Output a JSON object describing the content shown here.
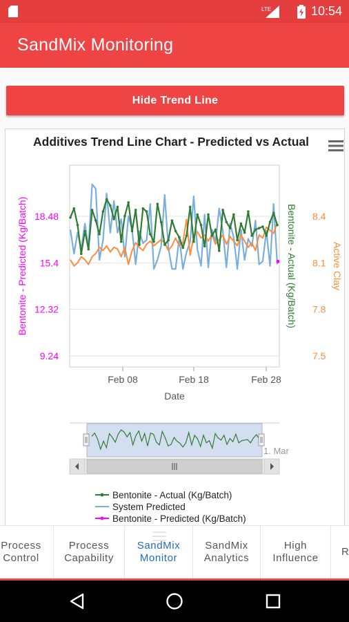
{
  "status_bar": {
    "time": "10:54",
    "network": "LTE"
  },
  "app_bar": {
    "title": "SandMix Monitoring"
  },
  "hide_button": {
    "label": "Hide Trend Line"
  },
  "chart_data": {
    "type": "line",
    "title": "Additives Trend Line Chart - Predicted vs Actual",
    "xlabel": "Date",
    "x_ticks": [
      "Feb 08",
      "Feb 18",
      "Feb 28"
    ],
    "left_axis": {
      "label": "Bentonite - Predicted (Kg/Batch)",
      "ticks": [
        "9.24",
        "12.32",
        "15.4",
        "18.48"
      ],
      "range": [
        9.24,
        18.48
      ],
      "color": "#ff00ff"
    },
    "right_axis_1": {
      "label": "Bentonite - Actual (Kg/Batch)",
      "color": "#2e7d32"
    },
    "right_axis_2": {
      "label": "Active Clay",
      "ticks": [
        "7.5",
        "7.8",
        "8.1",
        "8.4"
      ],
      "range": [
        7.5,
        8.4
      ],
      "color": "#ff8c3a"
    },
    "navigator_label": "1. Mar",
    "series": [
      {
        "name": "Bentonite - Actual (Kg/Batch)",
        "color": "#2e7d32",
        "values": [
          18.4,
          19.0,
          17.9,
          16.0,
          17.5,
          16.3,
          18.9,
          18.2,
          17.3,
          18.8,
          19.6,
          19.2,
          18.3,
          19.1,
          16.8,
          18.5,
          19.4,
          17.5,
          18.9,
          16.6,
          19.0,
          18.8,
          17.3,
          16.8,
          19.3,
          18.1,
          16.6,
          16.9,
          18.2,
          17.5,
          17.1,
          16.4,
          17.2,
          19.1,
          16.8,
          18.6,
          17.9,
          16.5,
          18.6,
          17.2,
          17.6,
          16.2,
          18.9,
          18.1,
          17.7,
          18.6,
          16.9,
          18.0,
          17.4,
          18.8,
          17.2,
          17.6,
          17.7,
          17.8,
          17.2,
          18.1,
          18.7,
          17.9
        ]
      },
      {
        "name": "System Predicted",
        "color": "#7aaedc",
        "values": [
          17.6,
          16.0,
          17.4,
          16.3,
          18.0,
          16.4,
          20.6,
          20.3,
          15.6,
          16.9,
          20.0,
          17.4,
          19.5,
          17.4,
          18.3,
          15.8,
          18.5,
          17.6,
          15.3,
          17.5,
          16.7,
          16.9,
          19.3,
          15.0,
          15.6,
          16.5,
          19.9,
          16.4,
          15.0,
          15.0,
          17.1,
          15.0,
          16.1,
          16.8,
          19.8,
          16.3,
          15.2,
          18.6,
          15.1,
          17.6,
          16.8,
          19.0,
          17.5,
          15.1,
          18.0,
          17.1,
          15.0,
          17.6,
          15.6,
          17.0,
          16.5,
          18.2,
          15.3,
          15.5,
          17.5,
          15.2,
          19.3,
          15.3
        ]
      },
      {
        "name": "Active Clay",
        "color": "#ff8c3a",
        "values": [
          8.12,
          8.08,
          8.1,
          8.14,
          8.12,
          8.09,
          8.14,
          8.16,
          8.2,
          8.18,
          8.21,
          8.17,
          8.2,
          8.19,
          8.14,
          8.2,
          8.09,
          8.18,
          8.23,
          8.2,
          8.18,
          8.22,
          8.24,
          8.21,
          8.23,
          8.25,
          8.23,
          8.18,
          8.21,
          8.26,
          8.21,
          8.23,
          8.38,
          8.15,
          8.27,
          8.3,
          8.26,
          8.28,
          8.24,
          8.28,
          8.22,
          8.25,
          8.28,
          8.22,
          8.27,
          8.24,
          8.21,
          8.28,
          8.24,
          8.2,
          8.23,
          8.18,
          8.28,
          8.26,
          8.33,
          8.31,
          8.29,
          8.36
        ]
      },
      {
        "name": "Bentonite - Predicted (Kg/Batch)",
        "color": "#ff00ff",
        "values": [
          15.4
        ]
      }
    ],
    "legend": [
      {
        "label": "Bentonite - Actual (Kg/Batch)",
        "color": "#2e7d32"
      },
      {
        "label": "System Predicted",
        "color": "#7aaedc"
      },
      {
        "label": "Bentonite - Predicted (Kg/Batch)",
        "color": "#ff00ff"
      }
    ]
  },
  "menu_icon": "hamburger-menu-icon",
  "fab_icon": "filter-icon",
  "tabs": [
    {
      "label": "Process\nControl",
      "active": false
    },
    {
      "label": "Process\nCapability",
      "active": false
    },
    {
      "label": "SandMix\nMonitor",
      "active": true
    },
    {
      "label": "SandMix\nAnalytics",
      "active": false
    },
    {
      "label": "High\nInfluence",
      "active": false
    },
    {
      "label": "Ra",
      "active": false
    }
  ],
  "nav_icons": [
    "back-icon",
    "home-icon",
    "recents-icon"
  ]
}
